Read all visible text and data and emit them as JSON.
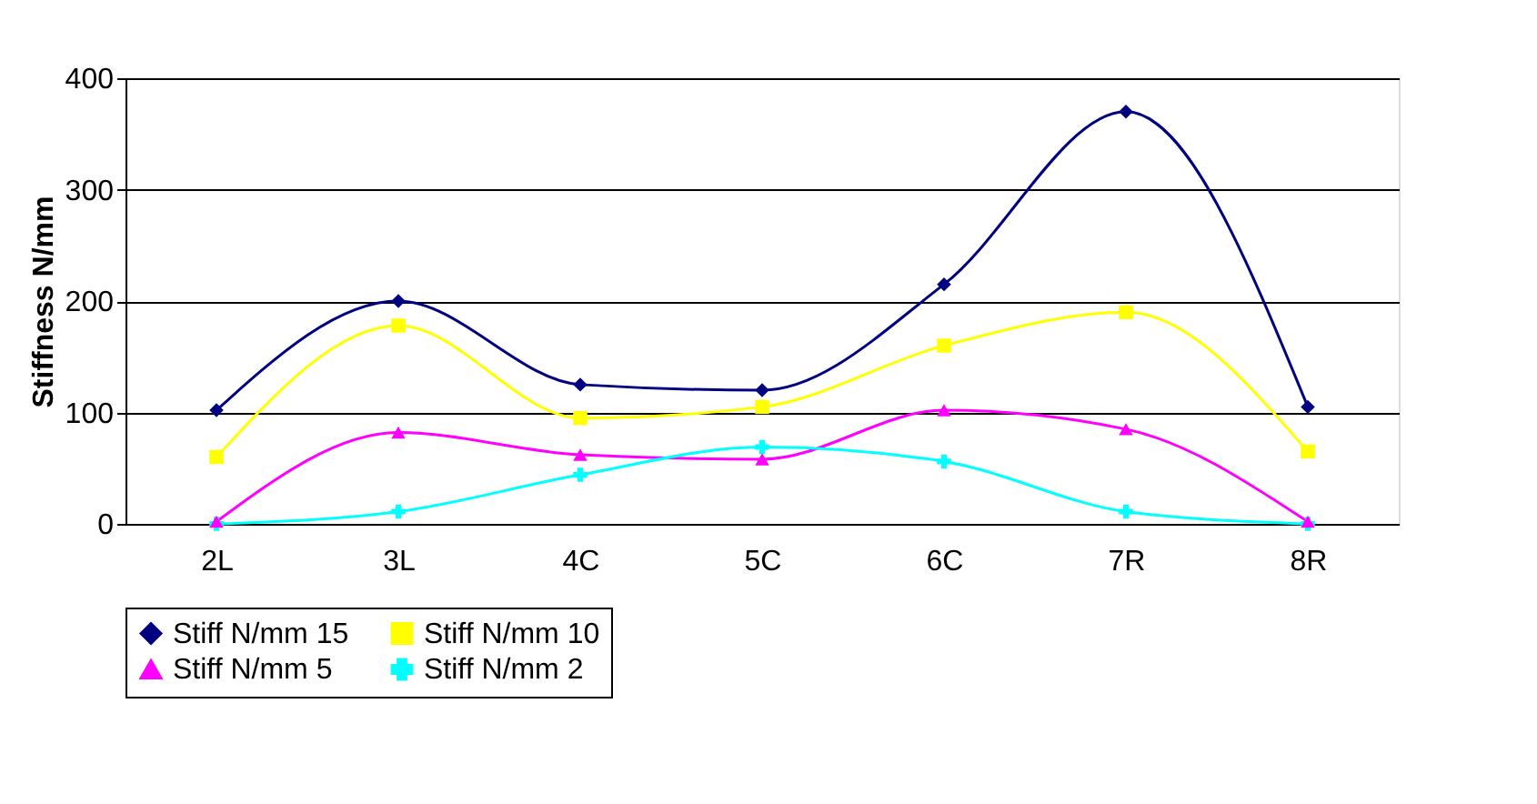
{
  "chart_data": {
    "type": "line",
    "ylabel": "Stiffness N/mm",
    "categories": [
      "2L",
      "3L",
      "4C",
      "5C",
      "6C",
      "7R",
      "8R"
    ],
    "series": [
      {
        "name": "Stiff N/mm 15",
        "color": "#000080",
        "marker": "diamond",
        "values": [
          102,
          200,
          125,
          120,
          215,
          370,
          105
        ]
      },
      {
        "name": "Stiff N/mm 10",
        "color": "#ffff00",
        "marker": "square",
        "values": [
          60,
          178,
          95,
          105,
          160,
          190,
          65
        ]
      },
      {
        "name": "Stiff N/mm 5",
        "color": "#ff00ff",
        "marker": "triangle",
        "values": [
          2,
          82,
          62,
          58,
          102,
          85,
          2
        ]
      },
      {
        "name": "Stiff N/mm 2",
        "color": "#00ffff",
        "marker": "cross",
        "values": [
          0,
          11,
          44,
          69,
          56,
          11,
          0
        ]
      }
    ],
    "ylim": [
      0,
      400
    ],
    "yticks": [
      0,
      100,
      200,
      300,
      400
    ],
    "grid": "y",
    "legend": "bottom"
  }
}
